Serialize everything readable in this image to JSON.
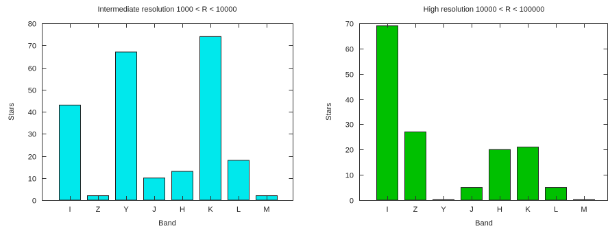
{
  "chart_data": [
    {
      "type": "bar",
      "title": "Intermediate resolution 1000 < R < 10000",
      "xlabel": "Band",
      "ylabel": "Stars",
      "categories": [
        "I",
        "Z",
        "Y",
        "J",
        "H",
        "K",
        "L",
        "M"
      ],
      "values": [
        43,
        2,
        67,
        10,
        13,
        74,
        18,
        2
      ],
      "ylim": [
        0,
        80
      ],
      "yticks": [
        0,
        10,
        20,
        30,
        40,
        50,
        60,
        70,
        80
      ],
      "color": "#00e8ec",
      "grid": false,
      "legend": "none"
    },
    {
      "type": "bar",
      "title": "High resolution 10000 < R < 100000",
      "xlabel": "Band",
      "ylabel": "Stars",
      "categories": [
        "I",
        "Z",
        "Y",
        "J",
        "H",
        "K",
        "L",
        "M"
      ],
      "values": [
        69,
        27,
        0,
        5,
        20,
        21,
        5,
        0
      ],
      "ylim": [
        0,
        70
      ],
      "yticks": [
        0,
        10,
        20,
        30,
        40,
        50,
        60,
        70
      ],
      "color": "#00c000",
      "grid": false,
      "legend": "none"
    }
  ]
}
